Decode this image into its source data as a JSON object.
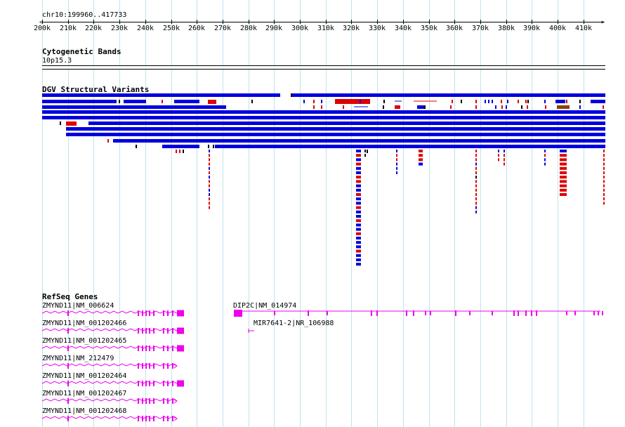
{
  "region": {
    "label": "chr10:199960..417733",
    "start": 200000,
    "end": 418000
  },
  "ruler": {
    "ticks": [
      "200k",
      "210k",
      "220k",
      "230k",
      "240k",
      "250k",
      "260k",
      "270k",
      "280k",
      "290k",
      "300k",
      "310k",
      "320k",
      "330k",
      "340k",
      "350k",
      "360k",
      "370k",
      "380k",
      "390k",
      "400k",
      "410k"
    ]
  },
  "tracks": {
    "cytobands": {
      "title": "Cytogenetic Bands",
      "band_label": "10p15.3"
    },
    "dgv": {
      "title": "DGV Structural Variants",
      "colors": {
        "loss": "#0000dd",
        "gain": "#dd0000",
        "complex": "#884400",
        "inversion": "#000000"
      }
    },
    "refseq": {
      "title": "RefSeq Genes",
      "color": "#ee00ee",
      "genes": [
        {
          "label": "ZMYND11|NM_006624"
        },
        {
          "label": "ZMYND11|NM_001202466"
        },
        {
          "label": "ZMYND11|NM_001202465"
        },
        {
          "label": "ZMYND11|NM_212479"
        },
        {
          "label": "ZMYND11|NM_001202464"
        },
        {
          "label": "ZMYND11|NM_001202467"
        },
        {
          "label": "ZMYND11|NM_001202468"
        },
        {
          "label": "DIP2C|NM_014974"
        },
        {
          "label": "MIR7641-2|NR_106988"
        }
      ]
    }
  }
}
